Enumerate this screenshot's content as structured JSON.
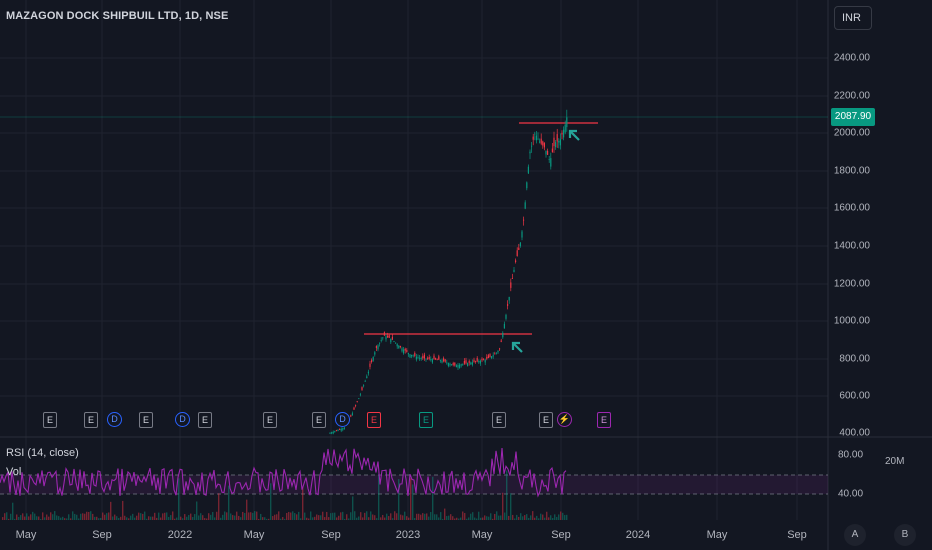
{
  "symbol_title": "MAZAGON DOCK SHIPBUIL LTD, 1D, NSE",
  "currency": "INR",
  "current_price": "2087.90",
  "price_axis": [
    "2400.00",
    "2200.00",
    "2000.00",
    "1800.00",
    "1600.00",
    "1400.00",
    "1200.00",
    "1000.00",
    "800.00",
    "600.00",
    "400.00"
  ],
  "time_axis": [
    "May",
    "Sep",
    "2022",
    "May",
    "Sep",
    "2023",
    "May",
    "Sep",
    "2024",
    "May",
    "Sep"
  ],
  "rsi": {
    "label": "RSI (14, close)",
    "axis": [
      "80.00",
      "40.00"
    ]
  },
  "volume": {
    "label": "Vol",
    "axis": "20M"
  },
  "events": [
    {
      "icon": "E",
      "kind": "earnings"
    },
    {
      "icon": "E",
      "kind": "earnings"
    },
    {
      "icon": "D",
      "kind": "dividend"
    },
    {
      "icon": "E",
      "kind": "earnings"
    },
    {
      "icon": "D",
      "kind": "dividend"
    },
    {
      "icon": "E",
      "kind": "earnings"
    },
    {
      "icon": "E",
      "kind": "earnings"
    },
    {
      "icon": "E",
      "kind": "earnings"
    },
    {
      "icon": "D",
      "kind": "dividend"
    },
    {
      "icon": "E",
      "kind": "earnings-miss"
    },
    {
      "icon": "E",
      "kind": "earnings-beat"
    },
    {
      "icon": "E",
      "kind": "earnings"
    },
    {
      "icon": "E",
      "kind": "earnings"
    },
    {
      "icon": "⚡",
      "kind": "split"
    },
    {
      "icon": "E",
      "kind": "earnings-upcoming"
    }
  ],
  "corner_buttons": {
    "auto": "A",
    "bars": "B"
  },
  "colors": {
    "up": "#089981",
    "down": "#f23645",
    "rsi": "#9c27b0",
    "annotation": "#f23645",
    "arrow": "#26a69a"
  }
}
